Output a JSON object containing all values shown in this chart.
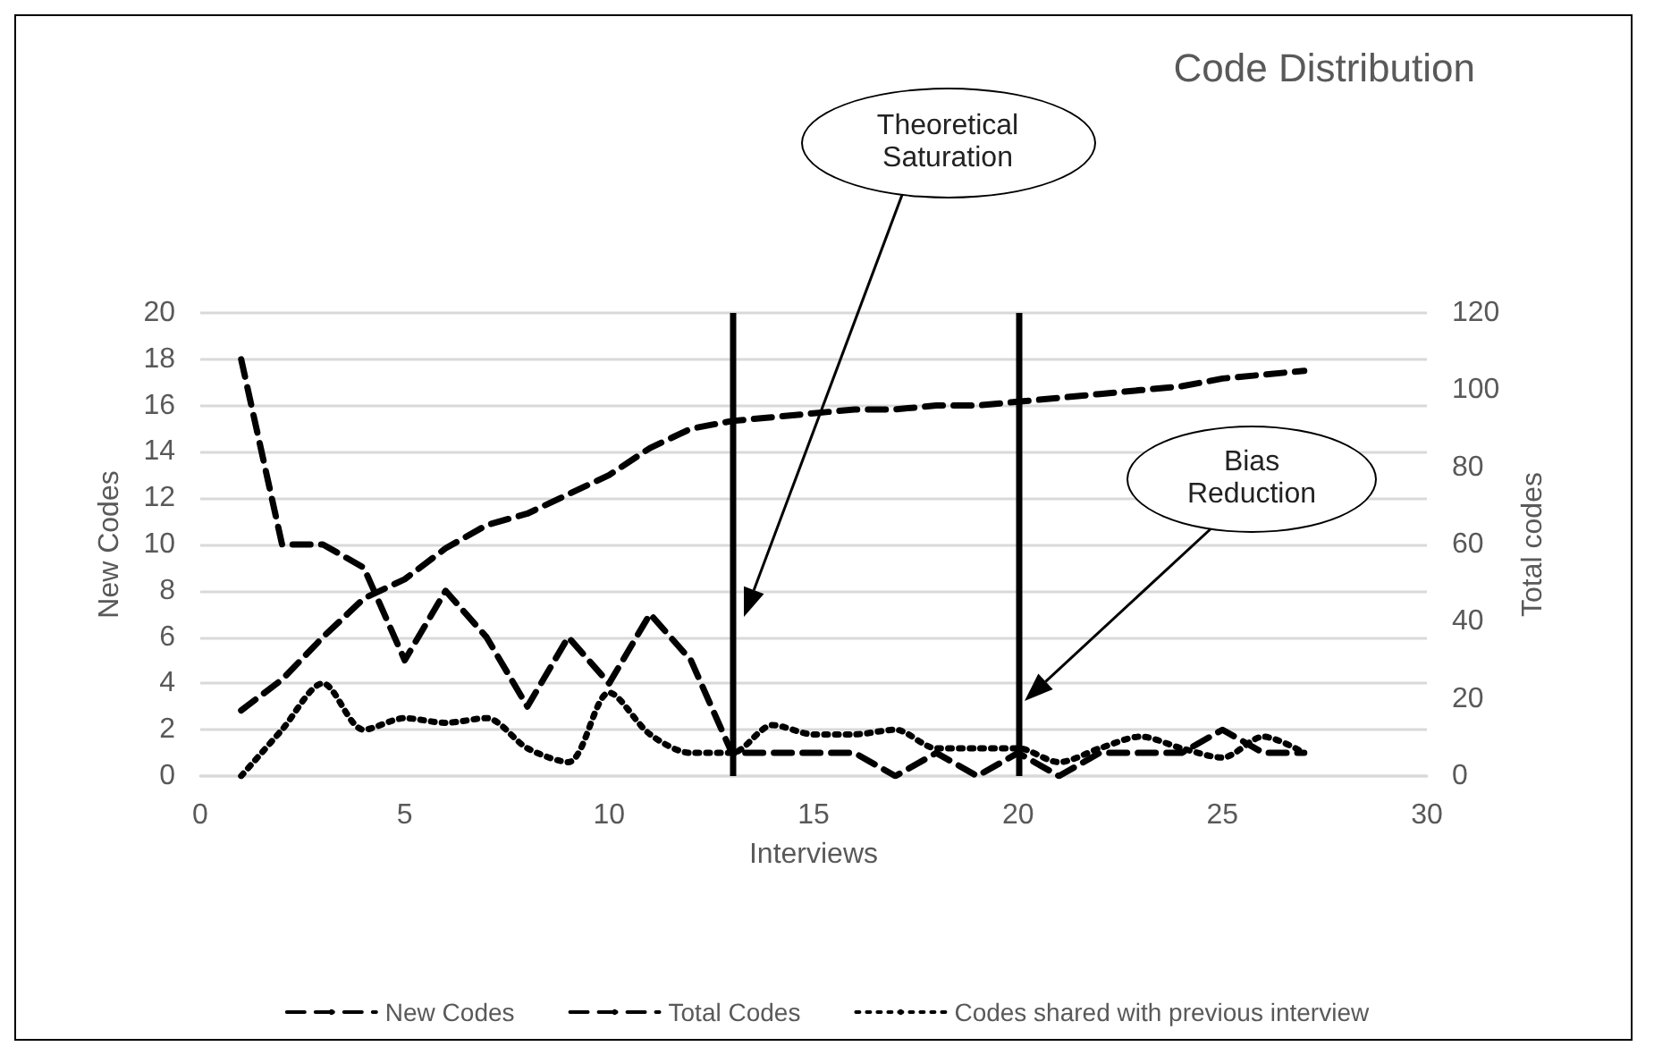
{
  "chart_data": {
    "type": "line",
    "title": "Code Distribution",
    "xlabel": "Interviews",
    "ylabel": "New Codes",
    "y2label": "Total codes",
    "x": [
      1,
      2,
      3,
      4,
      5,
      6,
      7,
      8,
      9,
      10,
      11,
      12,
      13,
      14,
      15,
      16,
      17,
      18,
      19,
      20,
      21,
      22,
      23,
      24,
      25,
      26,
      27
    ],
    "series": [
      {
        "name": "New Codes",
        "color": "#000000",
        "line_style": "dashed",
        "values": [
          18,
          10,
          10,
          9,
          5,
          8,
          6,
          3,
          6,
          4,
          7,
          5,
          1,
          1,
          1,
          1,
          0,
          1,
          0,
          1,
          0,
          1,
          1,
          1,
          2,
          1,
          1
        ]
      },
      {
        "name": "Total Codes",
        "color": "#000000",
        "line_style": "dashed",
        "axis": "y2",
        "values": [
          17,
          25,
          36,
          46,
          51,
          59,
          65,
          68,
          73,
          78,
          85,
          90,
          92,
          93,
          94,
          95,
          95,
          96,
          96,
          97,
          98,
          99,
          100,
          101,
          103,
          104,
          105
        ]
      },
      {
        "name": "Codes shared with previous interview",
        "color": "#000000",
        "line_style": "dotted",
        "values": [
          0,
          2,
          4,
          2,
          2.5,
          2.3,
          2.5,
          1.2,
          0.6,
          3.6,
          1.8,
          1,
          1,
          2.2,
          1.8,
          1.8,
          2,
          1.2,
          1.2,
          1.2,
          0.6,
          1.2,
          1.7,
          1.2,
          0.8,
          1.7,
          1
        ]
      }
    ],
    "xlim": [
      0,
      30
    ],
    "xticks": [
      0,
      5,
      10,
      15,
      20,
      25,
      30
    ],
    "ylim": [
      0,
      20
    ],
    "yticks": [
      0,
      2,
      4,
      6,
      8,
      10,
      12,
      14,
      16,
      18,
      20
    ],
    "y2lim": [
      0,
      120
    ],
    "y2ticks": [
      0,
      20,
      40,
      60,
      80,
      100,
      120
    ],
    "ref_lines": [
      {
        "axis": "x",
        "value": 13,
        "color": "#000000"
      },
      {
        "axis": "x",
        "value": 20,
        "color": "#000000"
      }
    ],
    "annotations": [
      "Theoretical Saturation",
      "Bias Reduction"
    ],
    "grid": "y",
    "legend": "bottom",
    "marker": "none"
  }
}
